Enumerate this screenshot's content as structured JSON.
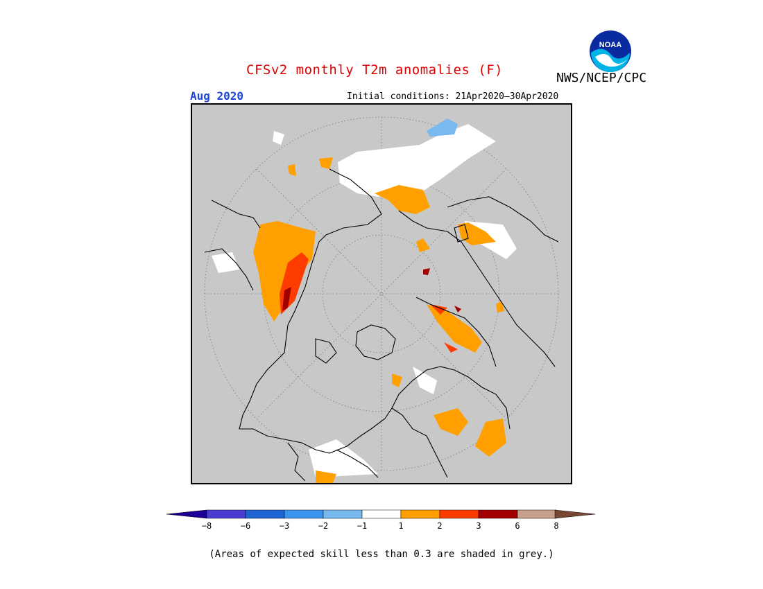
{
  "header": {
    "title": "CFSv2 monthly T2m anomalies (F)",
    "organization": "NWS/NCEP/CPC",
    "logo_text": "NOAA",
    "target_month": "Aug 2020",
    "initial_conditions": "Initial conditions: 21Apr2020–30Apr2020"
  },
  "map": {
    "projection": "north-polar-stereographic",
    "background_color": "#c8c8c8",
    "land_outline_color": "#000000"
  },
  "legend": {
    "colors": [
      "#1e0096",
      "#4b3cd2",
      "#1e64d2",
      "#3c96f0",
      "#78b9f0",
      "#ffffff",
      "#ffa000",
      "#ff3c00",
      "#a00000",
      "#c8a08c",
      "#784632"
    ],
    "labels": [
      "−8",
      "−6",
      "−3",
      "−2",
      "−1",
      "1",
      "2",
      "3",
      "6",
      "8"
    ]
  },
  "footnote": "(Areas of expected skill less than 0.3 are shaded in grey.)"
}
